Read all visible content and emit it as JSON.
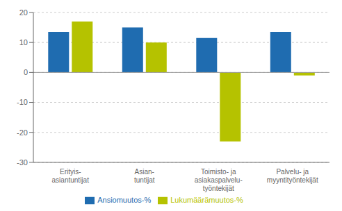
{
  "chart_data": {
    "type": "bar",
    "categories": [
      "Erityis-\nasiantuntijat",
      "Asian-\ntuntijat",
      "Toimisto- ja\nasiakaspalvelu-\ntyöntekijät",
      "Palvelu- ja\nmyyntityöntekijät"
    ],
    "series": [
      {
        "name": "Ansiomuutos-%",
        "color": "#1f6cb0",
        "values": [
          13.5,
          15.0,
          11.5,
          13.5
        ]
      },
      {
        "name": "Lukumäärämuutos-%",
        "color": "#b5c200",
        "values": [
          17.0,
          10.0,
          -23.0,
          -1.0
        ]
      }
    ],
    "ylim": [
      -30,
      20
    ],
    "yticks": [
      -30,
      -20,
      -10,
      0,
      10,
      20
    ],
    "grid": true,
    "legend": "bottom"
  }
}
